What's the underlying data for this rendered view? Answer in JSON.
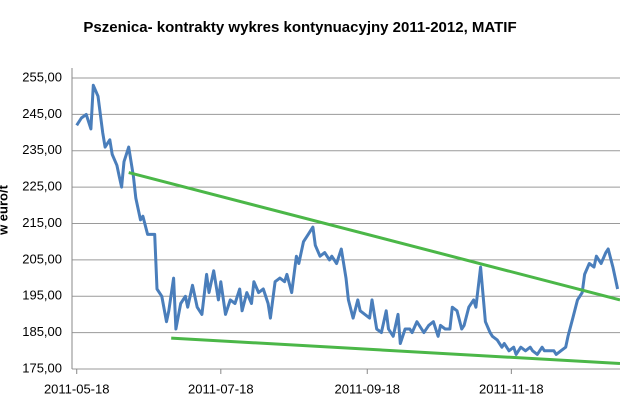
{
  "chart_data": {
    "type": "line",
    "title": "Pszenica- kontrakty wykres kontynuacyjny 2011-2012, MATIF",
    "y_label": "w euro/t",
    "xlim": [
      "2011-05-16",
      "2012-01-03"
    ],
    "xticks": [
      "2011-05-18",
      "2011-07-18",
      "2011-09-18",
      "2011-11-18"
    ],
    "ylim": [
      175,
      255
    ],
    "yticks": [
      {
        "value": 175,
        "label": "175,00"
      },
      {
        "value": 185,
        "label": "185,00"
      },
      {
        "value": 195,
        "label": "195,00"
      },
      {
        "value": 205,
        "label": "205,00"
      },
      {
        "value": 215,
        "label": "215,00"
      },
      {
        "value": 225,
        "label": "225,00"
      },
      {
        "value": 235,
        "label": "235,00"
      },
      {
        "value": 245,
        "label": "245,00"
      },
      {
        "value": 255,
        "label": "255,00"
      }
    ],
    "grid": true,
    "series": [
      {
        "color": "#4a7ebb",
        "width": 3,
        "x": [
          "2011-05-18",
          "2011-05-20",
          "2011-05-22",
          "2011-05-24",
          "2011-05-25",
          "2011-05-27",
          "2011-05-29",
          "2011-05-30",
          "2011-06-01",
          "2011-06-02",
          "2011-06-04",
          "2011-06-05",
          "2011-06-06",
          "2011-06-07",
          "2011-06-09",
          "2011-06-11",
          "2011-06-12",
          "2011-06-14",
          "2011-06-15",
          "2011-06-17",
          "2011-06-20",
          "2011-06-21",
          "2011-06-23",
          "2011-06-25",
          "2011-06-26",
          "2011-06-28",
          "2011-06-29",
          "2011-07-01",
          "2011-07-03",
          "2011-07-04",
          "2011-07-06",
          "2011-07-08",
          "2011-07-10",
          "2011-07-12",
          "2011-07-13",
          "2011-07-15",
          "2011-07-17",
          "2011-07-18",
          "2011-07-20",
          "2011-07-22",
          "2011-07-24",
          "2011-07-26",
          "2011-07-27",
          "2011-07-29",
          "2011-07-31",
          "2011-08-01",
          "2011-08-03",
          "2011-08-05",
          "2011-08-07",
          "2011-08-08",
          "2011-08-10",
          "2011-08-12",
          "2011-08-14",
          "2011-08-15",
          "2011-08-17",
          "2011-08-19",
          "2011-08-20",
          "2011-08-22",
          "2011-08-24",
          "2011-08-26",
          "2011-08-27",
          "2011-08-29",
          "2011-08-31",
          "2011-09-02",
          "2011-09-03",
          "2011-09-05",
          "2011-09-07",
          "2011-09-09",
          "2011-09-10",
          "2011-09-12",
          "2011-09-14",
          "2011-09-15",
          "2011-09-17",
          "2011-09-19",
          "2011-09-20",
          "2011-09-22",
          "2011-09-24",
          "2011-09-26",
          "2011-09-27",
          "2011-09-29",
          "2011-10-01",
          "2011-10-02",
          "2011-10-04",
          "2011-10-06",
          "2011-10-07",
          "2011-10-09",
          "2011-10-11",
          "2011-10-12",
          "2011-10-14",
          "2011-10-16",
          "2011-10-18",
          "2011-10-19",
          "2011-10-21",
          "2011-10-23",
          "2011-10-24",
          "2011-10-26",
          "2011-10-28",
          "2011-10-29",
          "2011-10-31",
          "2011-11-02",
          "2011-11-03",
          "2011-11-05",
          "2011-11-07",
          "2011-11-09",
          "2011-11-10",
          "2011-11-12",
          "2011-11-14",
          "2011-11-15",
          "2011-11-17",
          "2011-11-19",
          "2011-11-20",
          "2011-11-22",
          "2011-11-24",
          "2011-11-26",
          "2011-11-27",
          "2011-11-29",
          "2011-12-01",
          "2011-12-02",
          "2011-12-04",
          "2011-12-06",
          "2011-12-07",
          "2011-12-09",
          "2011-12-11",
          "2011-12-12",
          "2011-12-14",
          "2011-12-16",
          "2011-12-18",
          "2011-12-19",
          "2011-12-21",
          "2011-12-23",
          "2011-12-24",
          "2011-12-26",
          "2011-12-28",
          "2011-12-29",
          "2011-12-31",
          "2012-01-02"
        ],
        "values": [
          242,
          244,
          245,
          241,
          253,
          250,
          240,
          236,
          238,
          234,
          231,
          228,
          225,
          232,
          236,
          228,
          222,
          216,
          217,
          212,
          212,
          197,
          195,
          188,
          191,
          200,
          186,
          193,
          195,
          192,
          198,
          192,
          190,
          201,
          196,
          202,
          194,
          199,
          190,
          194,
          193,
          197,
          191,
          196,
          193,
          199,
          196,
          197,
          193,
          189,
          199,
          200,
          199,
          201,
          196,
          206,
          204,
          210,
          212,
          214,
          209,
          206,
          207,
          205,
          206,
          204,
          208,
          200,
          194,
          189,
          194,
          191,
          190,
          189,
          194,
          186,
          185,
          191,
          186,
          184,
          190,
          182,
          186,
          186,
          185,
          188,
          186,
          185,
          187,
          188,
          184,
          187,
          186,
          186,
          192,
          191,
          186,
          187,
          192,
          194,
          192,
          203,
          188,
          185,
          184,
          183,
          181,
          182,
          180,
          181,
          179,
          181,
          180,
          181,
          180,
          179,
          181,
          180,
          180,
          180,
          179,
          180,
          181,
          184,
          189,
          194,
          196,
          201,
          204,
          203,
          206,
          204,
          207,
          208,
          203,
          197
        ]
      },
      {
        "color": "#4bb748",
        "width": 3,
        "x": [
          "2011-06-09",
          "2012-01-03"
        ],
        "values": [
          229,
          194
        ]
      },
      {
        "color": "#4bb748",
        "width": 3,
        "x": [
          "2011-06-27",
          "2012-01-03"
        ],
        "values": [
          183.5,
          176.5
        ]
      }
    ]
  }
}
